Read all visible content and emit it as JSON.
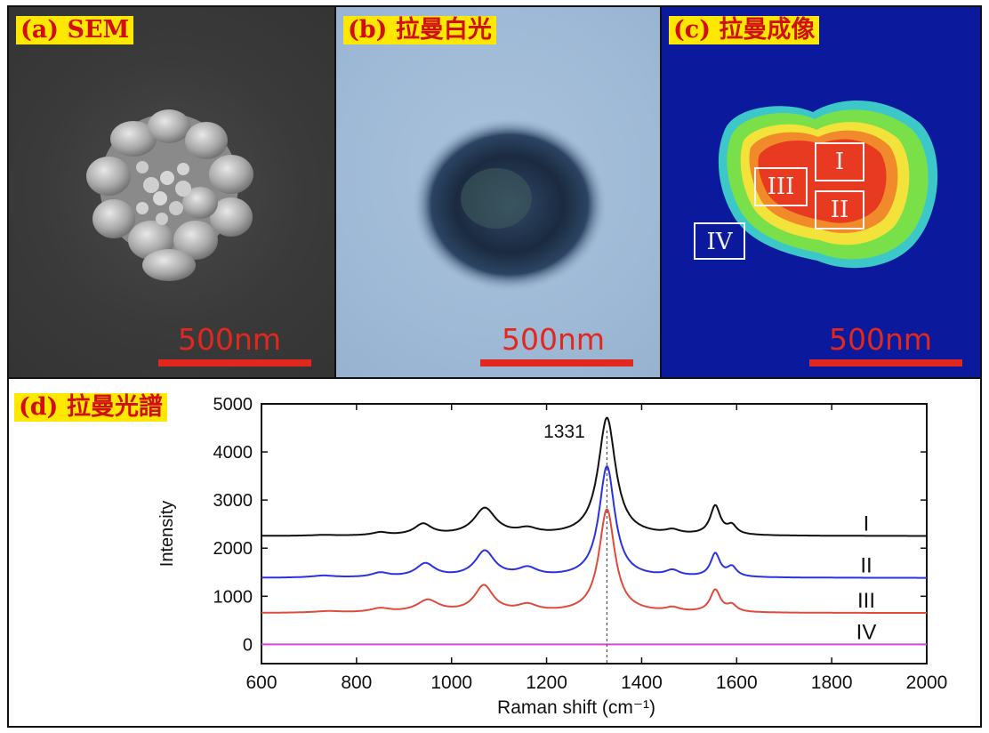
{
  "panels": {
    "a": {
      "tag": "(a) SEM",
      "scale_label": "500nm"
    },
    "b": {
      "tag": "(b) 拉曼白光",
      "scale_label": "500nm"
    },
    "c": {
      "tag": "(c) 拉曼成像",
      "scale_label": "500nm",
      "regions": [
        "I",
        "II",
        "III",
        "IV"
      ]
    },
    "d": {
      "tag": "(d) 拉曼光譜"
    }
  },
  "colors": {
    "tag_bg": "#ffe800",
    "tag_text": "#d01010",
    "scale": "#e0281e",
    "map_bg": "#0b1a9c",
    "sem_bg": "#3a3a3a",
    "optical_bg": "#9fbad6"
  },
  "chart_data": {
    "type": "line",
    "xlabel": "Raman shift (cm⁻¹)",
    "ylabel": "Intensity",
    "xlim": [
      600,
      2000
    ],
    "ylim": [
      -400,
      5000
    ],
    "x_ticks": [
      600,
      800,
      1000,
      1200,
      1400,
      1600,
      1800,
      2000
    ],
    "y_ticks": [
      0,
      1000,
      2000,
      3000,
      4000,
      5000
    ],
    "annotation": {
      "text": "1331",
      "x": 1331
    },
    "series": [
      {
        "name": "I",
        "color": "#111111",
        "baseline": 2250,
        "peaks": [
          [
            730,
            30,
            15
          ],
          [
            850,
            20,
            60
          ],
          [
            940,
            22,
            230
          ],
          [
            1070,
            28,
            560
          ],
          [
            1160,
            25,
            110
          ],
          [
            1327,
            22,
            2450
          ],
          [
            1465,
            18,
            80
          ],
          [
            1555,
            13,
            600
          ],
          [
            1590,
            12,
            180
          ]
        ]
      },
      {
        "name": "II",
        "color": "#2a33e0",
        "baseline": 1380,
        "peaks": [
          [
            730,
            30,
            40
          ],
          [
            850,
            22,
            90
          ],
          [
            945,
            24,
            280
          ],
          [
            1070,
            25,
            540
          ],
          [
            1160,
            25,
            170
          ],
          [
            1327,
            20,
            2310
          ],
          [
            1465,
            18,
            120
          ],
          [
            1555,
            12,
            480
          ],
          [
            1590,
            12,
            200
          ]
        ]
      },
      {
        "name": "III",
        "color": "#e04b3c",
        "baseline": 650,
        "peaks": [
          [
            740,
            35,
            30
          ],
          [
            850,
            25,
            80
          ],
          [
            950,
            28,
            250
          ],
          [
            1068,
            24,
            550
          ],
          [
            1160,
            25,
            140
          ],
          [
            1327,
            20,
            2150
          ],
          [
            1465,
            18,
            80
          ],
          [
            1555,
            13,
            460
          ],
          [
            1590,
            12,
            140
          ]
        ]
      },
      {
        "name": "IV",
        "color": "#e040e0",
        "baseline": 0,
        "peaks": []
      }
    ]
  }
}
